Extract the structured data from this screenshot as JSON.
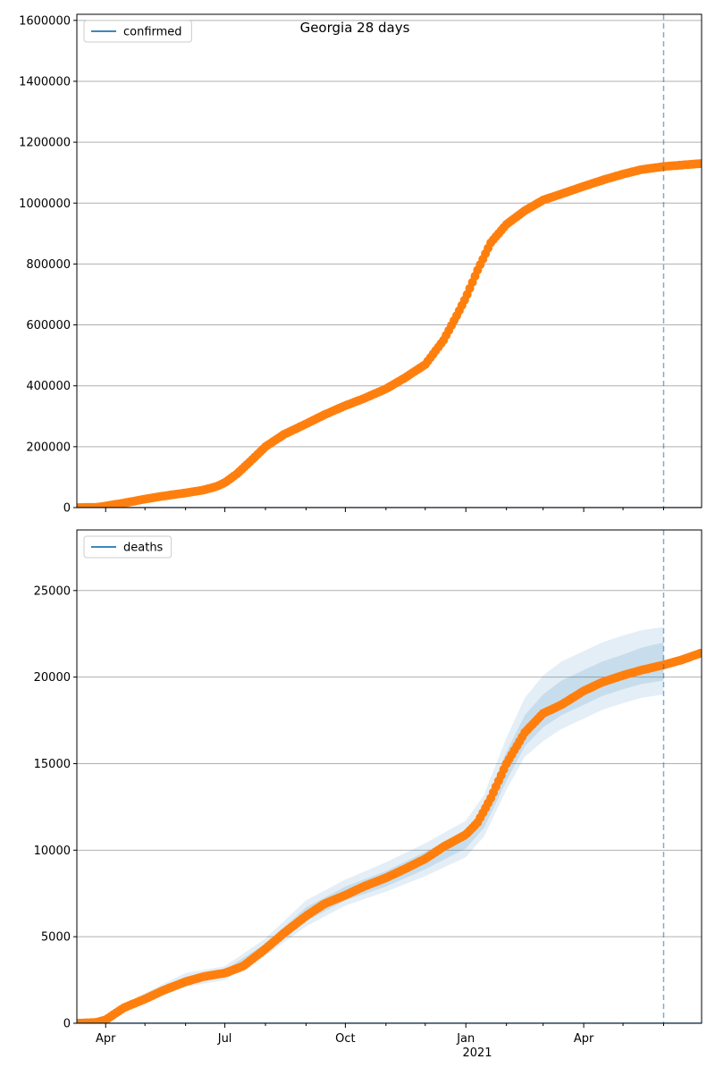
{
  "figure": {
    "title": "Georgia 28 days"
  },
  "x_axis": {
    "ticks": [
      "Apr",
      "Jul",
      "Oct",
      "Jan",
      "Apr"
    ],
    "tick_dates": [
      "2020-04-01",
      "2020-07-01",
      "2020-10-01",
      "2021-01-01",
      "2021-04-01"
    ],
    "year_label": "2021",
    "range": [
      "2020-03-10",
      "2021-06-30"
    ],
    "forecast_line_date": "2021-06-01"
  },
  "colors": {
    "observed": "#ff7f0e",
    "model_line": "#1f77b4",
    "band": "#1f77b4",
    "grid": "#b0b0b0"
  },
  "chart_data": [
    {
      "type": "scatter",
      "legend": "confirmed",
      "legend_position": "top-left",
      "grid": "horizontal",
      "ylim": [
        0,
        1620000
      ],
      "yticks": [
        "0",
        "200000",
        "400000",
        "600000",
        "800000",
        "1000000",
        "1200000",
        "1400000",
        "1600000"
      ],
      "ytick_values": [
        0,
        200000,
        400000,
        600000,
        800000,
        1000000,
        1200000,
        1400000,
        1600000
      ],
      "observed": {
        "x": [
          "2020-03-10",
          "2020-03-25",
          "2020-04-01",
          "2020-04-15",
          "2020-05-01",
          "2020-05-15",
          "2020-06-01",
          "2020-06-15",
          "2020-06-25",
          "2020-07-01",
          "2020-07-10",
          "2020-07-20",
          "2020-08-01",
          "2020-08-15",
          "2020-09-01",
          "2020-09-15",
          "2020-10-01",
          "2020-10-15",
          "2020-11-01",
          "2020-11-15",
          "2020-12-01",
          "2020-12-15",
          "2020-12-25",
          "2021-01-01",
          "2021-01-10",
          "2021-01-20",
          "2021-02-01",
          "2021-02-15",
          "2021-03-01",
          "2021-03-15",
          "2021-04-01",
          "2021-04-15",
          "2021-05-01",
          "2021-05-15",
          "2021-06-01",
          "2021-06-15",
          "2021-06-30"
        ],
        "y": [
          0,
          1000,
          5000,
          15000,
          28000,
          38000,
          48000,
          58000,
          70000,
          82000,
          110000,
          150000,
          200000,
          240000,
          275000,
          305000,
          335000,
          358000,
          390000,
          425000,
          470000,
          550000,
          630000,
          690000,
          780000,
          870000,
          930000,
          975000,
          1010000,
          1030000,
          1055000,
          1075000,
          1095000,
          1110000,
          1120000,
          1125000,
          1130000
        ]
      },
      "model_line": {
        "x": [
          "2020-03-10",
          "2021-06-30"
        ],
        "y": [
          0,
          0
        ]
      }
    },
    {
      "type": "scatter",
      "legend": "deaths",
      "legend_position": "top-left",
      "grid": "horizontal",
      "ylim": [
        0,
        28500
      ],
      "yticks": [
        "0",
        "5000",
        "10000",
        "15000",
        "20000",
        "25000"
      ],
      "ytick_values": [
        0,
        5000,
        10000,
        15000,
        20000,
        25000
      ],
      "observed": {
        "x": [
          "2020-03-10",
          "2020-03-25",
          "2020-04-01",
          "2020-04-15",
          "2020-05-01",
          "2020-05-15",
          "2020-06-01",
          "2020-06-15",
          "2020-07-01",
          "2020-07-15",
          "2020-08-01",
          "2020-08-15",
          "2020-09-01",
          "2020-09-15",
          "2020-10-01",
          "2020-10-15",
          "2020-11-01",
          "2020-11-15",
          "2020-12-01",
          "2020-12-15",
          "2021-01-01",
          "2021-01-10",
          "2021-01-20",
          "2021-02-01",
          "2021-02-15",
          "2021-03-01",
          "2021-03-15",
          "2021-04-01",
          "2021-04-15",
          "2021-05-01",
          "2021-05-15",
          "2021-06-01",
          "2021-06-15",
          "2021-06-30"
        ],
        "y": [
          0,
          50,
          200,
          900,
          1400,
          1900,
          2400,
          2700,
          2900,
          3300,
          4300,
          5200,
          6200,
          6900,
          7400,
          7900,
          8400,
          8900,
          9500,
          10200,
          10900,
          11600,
          13000,
          15000,
          16800,
          17900,
          18400,
          19200,
          19700,
          20100,
          20400,
          20700,
          21000,
          21400
        ]
      },
      "bands": {
        "x": [
          "2020-03-10",
          "2020-04-01",
          "2020-05-01",
          "2020-06-01",
          "2020-07-01",
          "2020-08-01",
          "2020-09-01",
          "2020-10-01",
          "2020-11-01",
          "2020-12-01",
          "2021-01-01",
          "2021-01-15",
          "2021-02-01",
          "2021-02-15",
          "2021-03-01",
          "2021-03-15",
          "2021-04-01",
          "2021-04-15",
          "2021-05-01",
          "2021-05-15",
          "2021-06-01"
        ],
        "lower_outer": [
          0,
          250,
          1200,
          2100,
          2500,
          3900,
          5600,
          6800,
          7600,
          8500,
          9600,
          10800,
          13500,
          15400,
          16300,
          17000,
          17600,
          18100,
          18500,
          18800,
          19000
        ],
        "lower_inner": [
          0,
          280,
          1300,
          2300,
          2700,
          4100,
          5900,
          7100,
          7900,
          8900,
          10100,
          11300,
          14000,
          16000,
          17100,
          17800,
          18400,
          18900,
          19300,
          19600,
          19800
        ],
        "upper_inner": [
          0,
          380,
          1600,
          2700,
          3100,
          4600,
          6700,
          7900,
          8800,
          9900,
          11100,
          12500,
          15700,
          17800,
          19000,
          19800,
          20400,
          20900,
          21300,
          21700,
          22000
        ],
        "upper_outer": [
          0,
          420,
          1750,
          2900,
          3300,
          4900,
          7100,
          8300,
          9300,
          10400,
          11700,
          13200,
          16500,
          18800,
          20100,
          20900,
          21500,
          22000,
          22400,
          22700,
          22900
        ]
      },
      "model_line": {
        "x": [
          "2020-03-10",
          "2021-06-30"
        ],
        "y": [
          0,
          0
        ]
      }
    }
  ]
}
